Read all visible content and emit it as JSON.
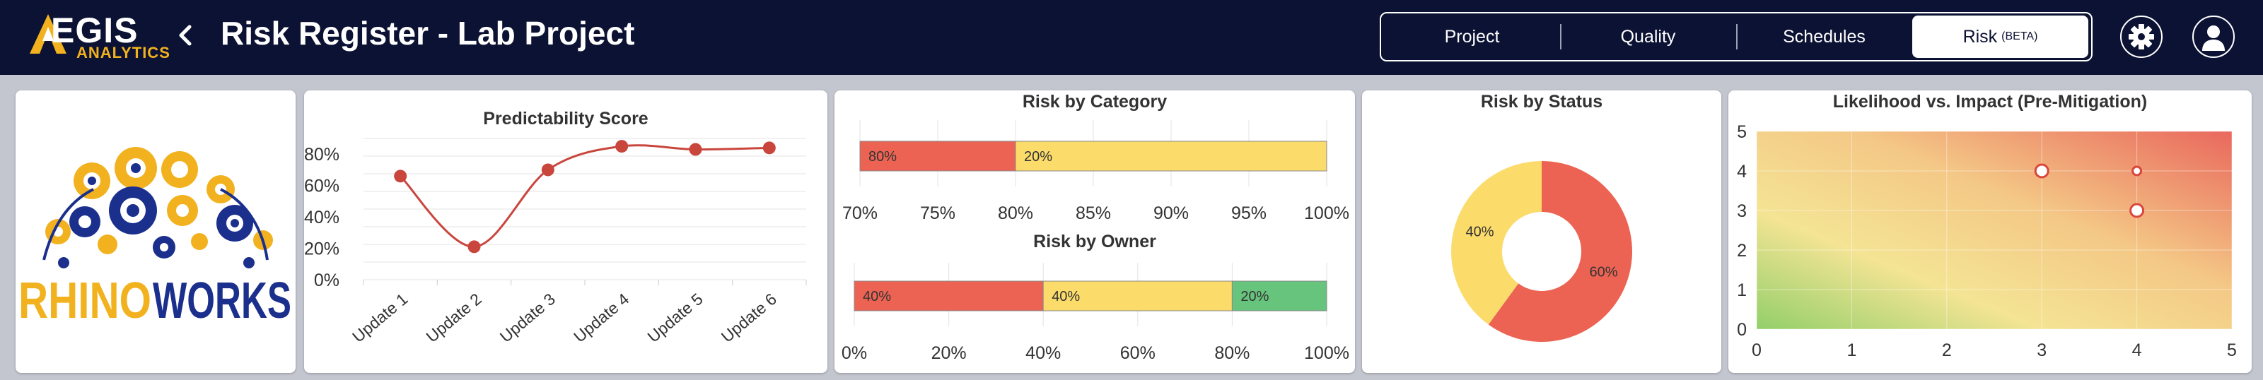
{
  "header": {
    "logo_text_top": "EGIS",
    "logo_text_bottom": "ANALYTICS",
    "title": "Risk Register - Lab Project",
    "tabs": [
      {
        "label": "Project",
        "beta": ""
      },
      {
        "label": "Quality",
        "beta": ""
      },
      {
        "label": "Schedules",
        "beta": ""
      },
      {
        "label": "Risk",
        "beta": "(BETA)"
      }
    ],
    "active_tab": 3,
    "icons": {
      "back": "chevron-left-icon",
      "settings": "gear-icon",
      "profile": "user-icon"
    }
  },
  "company_logo": {
    "word1": "RHINO",
    "word2": "WORKS",
    "colors": {
      "rhino": "#f2b21f",
      "works": "#1b2f8c"
    }
  },
  "charts": {
    "predictability": {
      "title": "Predictability Score",
      "type": "line",
      "categories": [
        "Update 1",
        "Update 2",
        "Update 3",
        "Update 4",
        "Update 5",
        "Update 6"
      ],
      "values": [
        66,
        21,
        70,
        85,
        83,
        84
      ],
      "yticks": [
        "0%",
        "20%",
        "40%",
        "60%",
        "80%"
      ],
      "ylim": [
        0,
        90
      ],
      "color": "#c9463d"
    },
    "category": {
      "title": "Risk by Category",
      "type": "stacked-bar",
      "xlim": [
        70,
        100
      ],
      "xticks": [
        "70%",
        "75%",
        "80%",
        "85%",
        "90%",
        "95%",
        "100%"
      ],
      "segments": [
        {
          "label": "80%",
          "from": 70,
          "to": 80,
          "color": "#ec6353"
        },
        {
          "label": "20%",
          "from": 80,
          "to": 100,
          "color": "#fbdc6b"
        }
      ]
    },
    "owner": {
      "title": "Risk by Owner",
      "type": "stacked-bar",
      "xlim": [
        0,
        100
      ],
      "xticks": [
        "0%",
        "20%",
        "40%",
        "60%",
        "80%",
        "100%"
      ],
      "segments": [
        {
          "label": "40%",
          "from": 0,
          "to": 40,
          "color": "#ec6353"
        },
        {
          "label": "40%",
          "from": 40,
          "to": 80,
          "color": "#fbdc6b"
        },
        {
          "label": "20%",
          "from": 80,
          "to": 100,
          "color": "#67c47c"
        }
      ]
    },
    "status": {
      "title": "Risk by Status",
      "type": "pie",
      "slices": [
        {
          "label": "60%",
          "value": 60,
          "color": "#ec6353"
        },
        {
          "label": "40%",
          "value": 40,
          "color": "#fbdc6b"
        }
      ]
    },
    "likelihood": {
      "title": "Likelihood vs. Impact (Pre-Mitigation)",
      "type": "scatter",
      "xlim": [
        0,
        5
      ],
      "ylim": [
        0,
        5
      ],
      "xticks": [
        "0",
        "1",
        "2",
        "3",
        "4",
        "5"
      ],
      "yticks": [
        "0",
        "1",
        "2",
        "3",
        "4",
        "5"
      ],
      "points": [
        {
          "x": 3,
          "y": 4,
          "size": "large"
        },
        {
          "x": 4,
          "y": 4,
          "size": "small"
        },
        {
          "x": 4,
          "y": 3,
          "size": "large"
        }
      ]
    }
  }
}
